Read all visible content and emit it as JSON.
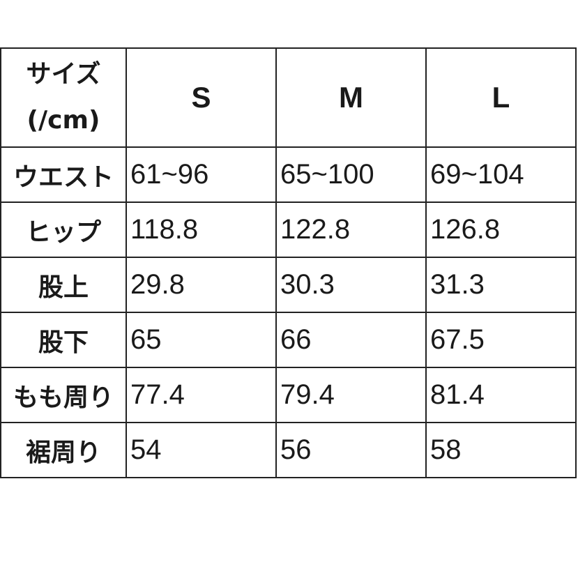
{
  "table": {
    "header": {
      "label_line1": "サイズ",
      "label_line2": "(/cm)",
      "sizes": [
        "S",
        "M",
        "L"
      ]
    },
    "rows": [
      {
        "label": "ウエスト",
        "values": [
          "61~96",
          "65~100",
          "69~104"
        ]
      },
      {
        "label": "ヒップ",
        "values": [
          "118.8",
          "122.8",
          "126.8"
        ]
      },
      {
        "label": "股上",
        "values": [
          "29.8",
          "30.3",
          "31.3"
        ]
      },
      {
        "label": "股下",
        "values": [
          "65",
          "66",
          "67.5"
        ]
      },
      {
        "label": "もも周り",
        "values": [
          "77.4",
          "79.4",
          "81.4"
        ]
      },
      {
        "label": "裾周り",
        "values": [
          "54",
          "56",
          "58"
        ]
      }
    ]
  }
}
